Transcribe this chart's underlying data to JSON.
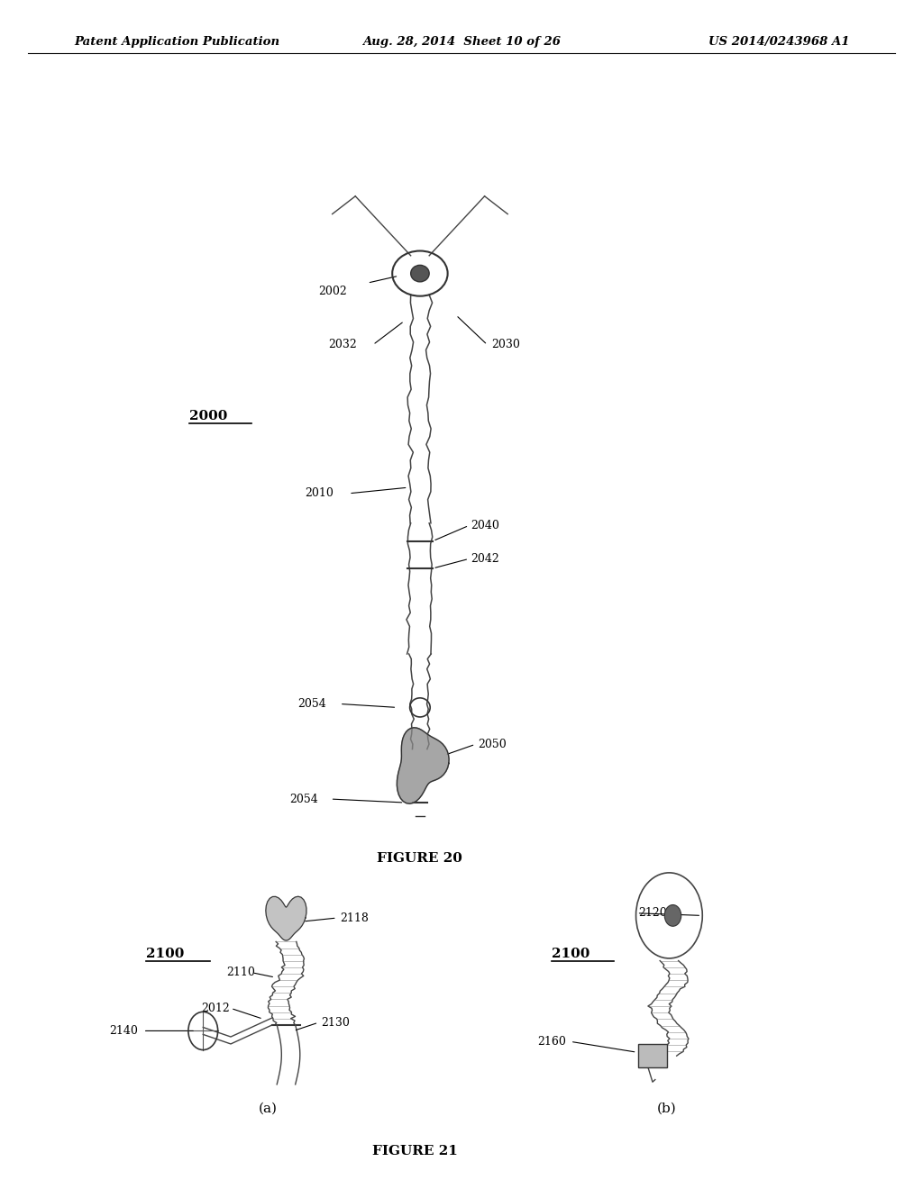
{
  "bg_color": "#ffffff",
  "header_left": "Patent Application Publication",
  "header_mid": "Aug. 28, 2014  Sheet 10 of 26",
  "header_right": "US 2014/0243968 A1",
  "fig20_caption": "FIGURE 20",
  "fig21_caption": "FIGURE 21",
  "fig20_label": "2000",
  "fig21a_label": "2100",
  "fig21b_label": "2100",
  "fig21a_sub": "(a)",
  "fig21b_sub": "(b)"
}
